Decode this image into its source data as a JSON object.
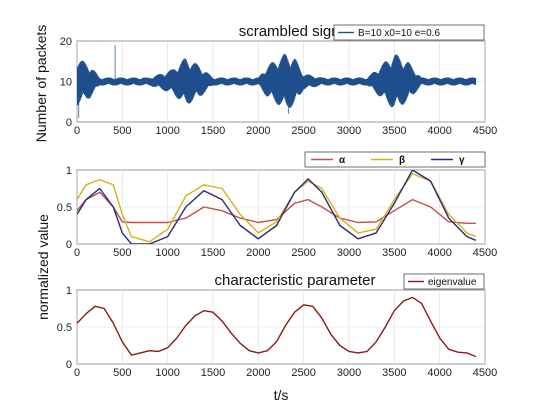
{
  "chart_data": [
    {
      "type": "line",
      "title": "scrambled signal",
      "ylabel": "Number of packets",
      "xlim": [
        0,
        4500
      ],
      "ylim": [
        0,
        20
      ],
      "xticks": [
        "0",
        "500",
        "1000",
        "1500",
        "2000",
        "2500",
        "3000",
        "3500",
        "4000",
        "4500"
      ],
      "yticks": [
        "0",
        "10",
        "20"
      ],
      "grid": true,
      "legend_position": "top-right",
      "series": [
        {
          "name": "B=10 x0=10 e=0.6",
          "color": "#1f4e8c",
          "baseline": 10,
          "x": [
            0,
            150,
            250,
            350,
            420,
            550,
            800,
            1050,
            1200,
            1350,
            1500,
            1700,
            2000,
            2100,
            2300,
            2400,
            2500,
            2700,
            3000,
            3200,
            3400,
            3500,
            3650,
            3800,
            4000,
            4400
          ],
          "amplitude": [
            6,
            4,
            1,
            1,
            1,
            1,
            1,
            3,
            6,
            4,
            1,
            1,
            1,
            4,
            7,
            6,
            2,
            1,
            1,
            1,
            5,
            7,
            5,
            1,
            1,
            1
          ],
          "spikes": [
            {
              "x": 420,
              "y": 19
            },
            {
              "x": 20,
              "y": 1
            },
            {
              "x": 2330,
              "y": 2
            }
          ]
        }
      ]
    },
    {
      "type": "line",
      "title": "",
      "ylabel": "normalized value",
      "xlim": [
        0,
        4500
      ],
      "ylim": [
        0,
        1
      ],
      "xticks": [
        "0",
        "500",
        "1000",
        "1500",
        "2000",
        "2500",
        "3000",
        "3500",
        "4000",
        "4500"
      ],
      "yticks": [
        "0",
        "0.5",
        "1"
      ],
      "grid": true,
      "legend_position": "top-right",
      "series": [
        {
          "name": "α",
          "color": "#c0504d",
          "x": [
            0,
            100,
            250,
            400,
            500,
            600,
            800,
            1000,
            1200,
            1400,
            1600,
            1800,
            2000,
            2200,
            2400,
            2550,
            2700,
            2900,
            3100,
            3300,
            3500,
            3700,
            3900,
            4100,
            4300,
            4400
          ],
          "y": [
            0.45,
            0.6,
            0.7,
            0.5,
            0.3,
            0.29,
            0.29,
            0.29,
            0.35,
            0.5,
            0.45,
            0.35,
            0.29,
            0.33,
            0.55,
            0.6,
            0.5,
            0.35,
            0.29,
            0.3,
            0.45,
            0.6,
            0.5,
            0.3,
            0.28,
            0.28
          ]
        },
        {
          "name": "β",
          "color": "#d4b21c",
          "x": [
            0,
            100,
            250,
            400,
            500,
            600,
            800,
            1000,
            1200,
            1400,
            1600,
            1800,
            2000,
            2200,
            2400,
            2550,
            2700,
            2900,
            3100,
            3300,
            3500,
            3700,
            3900,
            4100,
            4300,
            4400
          ],
          "y": [
            0.6,
            0.8,
            0.87,
            0.8,
            0.4,
            0.1,
            0.03,
            0.2,
            0.65,
            0.8,
            0.75,
            0.4,
            0.15,
            0.3,
            0.7,
            0.85,
            0.75,
            0.35,
            0.15,
            0.2,
            0.6,
            0.95,
            0.85,
            0.4,
            0.15,
            0.1
          ]
        },
        {
          "name": "γ",
          "color": "#2b2a7a",
          "x": [
            0,
            100,
            250,
            400,
            500,
            600,
            800,
            1000,
            1200,
            1400,
            1600,
            1800,
            2000,
            2200,
            2400,
            2550,
            2700,
            2900,
            3100,
            3300,
            3500,
            3700,
            3900,
            4100,
            4300,
            4400
          ],
          "y": [
            0.4,
            0.6,
            0.75,
            0.5,
            0.15,
            0.0,
            0.0,
            0.1,
            0.5,
            0.72,
            0.6,
            0.25,
            0.07,
            0.25,
            0.7,
            0.88,
            0.7,
            0.25,
            0.07,
            0.15,
            0.55,
            1.0,
            0.85,
            0.35,
            0.1,
            0.05
          ]
        }
      ]
    },
    {
      "type": "line",
      "title": "characteristic parameter",
      "ylabel": "",
      "xlabel": "t/s",
      "xlim": [
        0,
        4500
      ],
      "ylim": [
        0,
        1
      ],
      "xticks": [
        "0",
        "500",
        "1000",
        "1500",
        "2000",
        "2500",
        "3000",
        "3500",
        "4000",
        "4500"
      ],
      "yticks": [
        "0",
        "0.5",
        "1"
      ],
      "grid": true,
      "legend_position": "top-right",
      "series": [
        {
          "name": "eigenvalue",
          "color": "#8b1a1a",
          "x": [
            0,
            100,
            200,
            300,
            400,
            500,
            600,
            700,
            800,
            900,
            1000,
            1100,
            1200,
            1300,
            1400,
            1500,
            1600,
            1700,
            1800,
            1900,
            2000,
            2100,
            2200,
            2300,
            2400,
            2500,
            2600,
            2700,
            2800,
            2900,
            3000,
            3100,
            3200,
            3300,
            3400,
            3500,
            3600,
            3700,
            3800,
            3900,
            4000,
            4100,
            4200,
            4300,
            4400
          ],
          "y": [
            0.55,
            0.68,
            0.78,
            0.75,
            0.55,
            0.3,
            0.12,
            0.15,
            0.18,
            0.17,
            0.22,
            0.35,
            0.52,
            0.65,
            0.72,
            0.7,
            0.58,
            0.42,
            0.28,
            0.18,
            0.15,
            0.18,
            0.3,
            0.52,
            0.7,
            0.8,
            0.78,
            0.62,
            0.4,
            0.25,
            0.17,
            0.15,
            0.17,
            0.3,
            0.5,
            0.72,
            0.85,
            0.9,
            0.82,
            0.58,
            0.35,
            0.2,
            0.16,
            0.15,
            0.1
          ]
        }
      ]
    }
  ]
}
